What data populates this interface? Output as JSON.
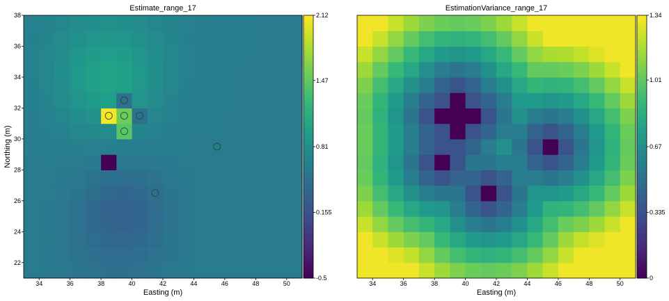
{
  "chart_data": [
    {
      "type": "heatmap",
      "title": "Estimate_range_17",
      "xlabel": "Easting (m)",
      "ylabel": "Northing (m)",
      "xlim": [
        33,
        51
      ],
      "ylim": [
        21,
        38
      ],
      "x_ticks": [
        "34",
        "36",
        "38",
        "40",
        "42",
        "44",
        "46",
        "48",
        "50"
      ],
      "y_ticks": [
        "22",
        "24",
        "26",
        "28",
        "30",
        "32",
        "34",
        "36",
        "38"
      ],
      "colormap": "viridis",
      "colorbar": {
        "min": -0.5,
        "max": 2.12,
        "ticks": [
          "2.12",
          "1.47",
          "0.81",
          "0.155",
          "-0.5"
        ]
      },
      "sample_points": [
        {
          "x": 38.5,
          "y": 31.5
        },
        {
          "x": 39.5,
          "y": 32.5
        },
        {
          "x": 39.5,
          "y": 31.5
        },
        {
          "x": 39.5,
          "y": 30.5
        },
        {
          "x": 40.5,
          "y": 31.5
        },
        {
          "x": 45.5,
          "y": 29.5
        },
        {
          "x": 41.5,
          "y": 26.5
        }
      ]
    },
    {
      "type": "heatmap",
      "title": "EstimationVariance_range_17",
      "xlabel": "Easting (m)",
      "ylabel": "",
      "xlim": [
        33,
        51
      ],
      "ylim": [
        21,
        38
      ],
      "x_ticks": [
        "34",
        "36",
        "38",
        "40",
        "42",
        "44",
        "46",
        "48",
        "50"
      ],
      "y_ticks": [],
      "colormap": "viridis",
      "colorbar": {
        "min": 0,
        "max": 1.34,
        "ticks": [
          "1.34",
          "1.01",
          "0.67",
          "0.335",
          "0"
        ]
      },
      "sample_points": []
    }
  ]
}
